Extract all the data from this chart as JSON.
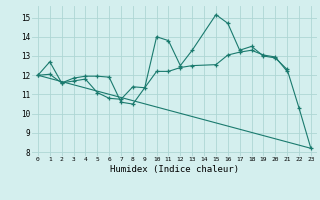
{
  "xlabel": "Humidex (Indice chaleur)",
  "bg_color": "#d4efee",
  "grid_color": "#aed6d4",
  "line_color": "#1a7a6e",
  "xlim": [
    -0.5,
    23.5
  ],
  "ylim": [
    7.8,
    15.6
  ],
  "yticks": [
    8,
    9,
    10,
    11,
    12,
    13,
    14,
    15
  ],
  "xticks": [
    0,
    1,
    2,
    3,
    4,
    5,
    6,
    7,
    8,
    9,
    10,
    11,
    12,
    13,
    14,
    15,
    16,
    17,
    18,
    19,
    20,
    21,
    22,
    23
  ],
  "line1_x": [
    0,
    1,
    2,
    3,
    4,
    5,
    6,
    7,
    8,
    9,
    10,
    11,
    12,
    13,
    15,
    16,
    17,
    18,
    19,
    20,
    21,
    22,
    23
  ],
  "line1_y": [
    12.0,
    12.7,
    11.6,
    11.7,
    11.8,
    11.1,
    10.8,
    10.75,
    11.4,
    11.35,
    14.0,
    13.8,
    12.5,
    13.3,
    15.15,
    14.7,
    13.3,
    13.5,
    13.0,
    12.9,
    12.3,
    10.3,
    8.2
  ],
  "line2_x": [
    0,
    1,
    2,
    3,
    4,
    5,
    6,
    7,
    8,
    10,
    11,
    12,
    13,
    15,
    16,
    17,
    18,
    19,
    20,
    21
  ],
  "line2_y": [
    12.0,
    12.05,
    11.6,
    11.85,
    11.95,
    11.95,
    11.9,
    10.6,
    10.5,
    12.2,
    12.2,
    12.4,
    12.5,
    12.55,
    13.05,
    13.2,
    13.3,
    13.05,
    12.95,
    12.2
  ],
  "line3_x": [
    0,
    23
  ],
  "line3_y": [
    12.0,
    8.2
  ]
}
